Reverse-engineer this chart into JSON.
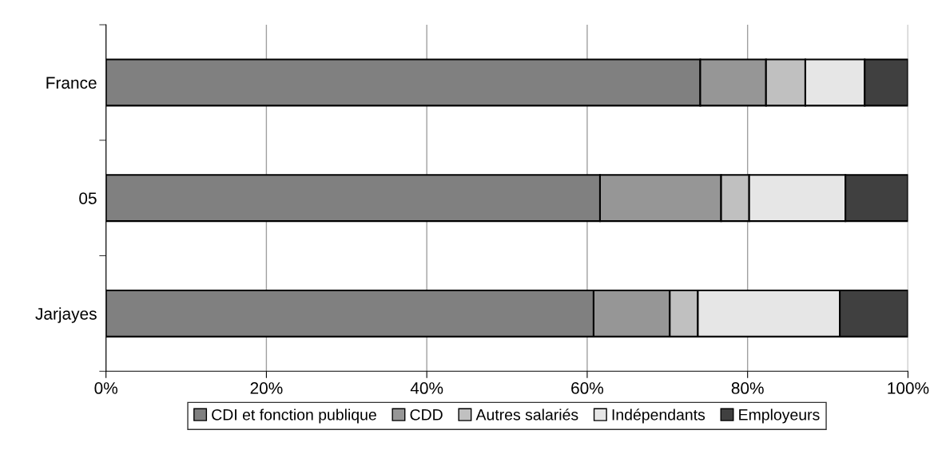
{
  "chart_data": {
    "type": "bar",
    "orientation": "horizontal",
    "stacked": true,
    "categories": [
      "France",
      "05",
      "Jarjayes"
    ],
    "series": [
      {
        "name": "CDI et fonction publique",
        "color": "#808080",
        "values": [
          74.1,
          61.6,
          60.8
        ]
      },
      {
        "name": "CDD",
        "color": "#969696",
        "values": [
          8.2,
          15.1,
          9.5
        ]
      },
      {
        "name": "Autres salariés",
        "color": "#c0c0c0",
        "values": [
          4.9,
          3.5,
          3.5
        ]
      },
      {
        "name": "Indépendants",
        "color": "#e6e6e6",
        "values": [
          7.4,
          12.0,
          17.7
        ]
      },
      {
        "name": "Employeurs",
        "color": "#404040",
        "values": [
          5.4,
          7.8,
          8.5
        ]
      }
    ],
    "xlim": [
      0,
      100
    ],
    "xticks": [
      {
        "value": 0,
        "label": "0%"
      },
      {
        "value": 20,
        "label": "20%"
      },
      {
        "value": 40,
        "label": "40%"
      },
      {
        "value": 60,
        "label": "60%"
      },
      {
        "value": 80,
        "label": "80%"
      },
      {
        "value": 100,
        "label": "100%"
      }
    ],
    "grid": "x",
    "legend": "bottom"
  }
}
